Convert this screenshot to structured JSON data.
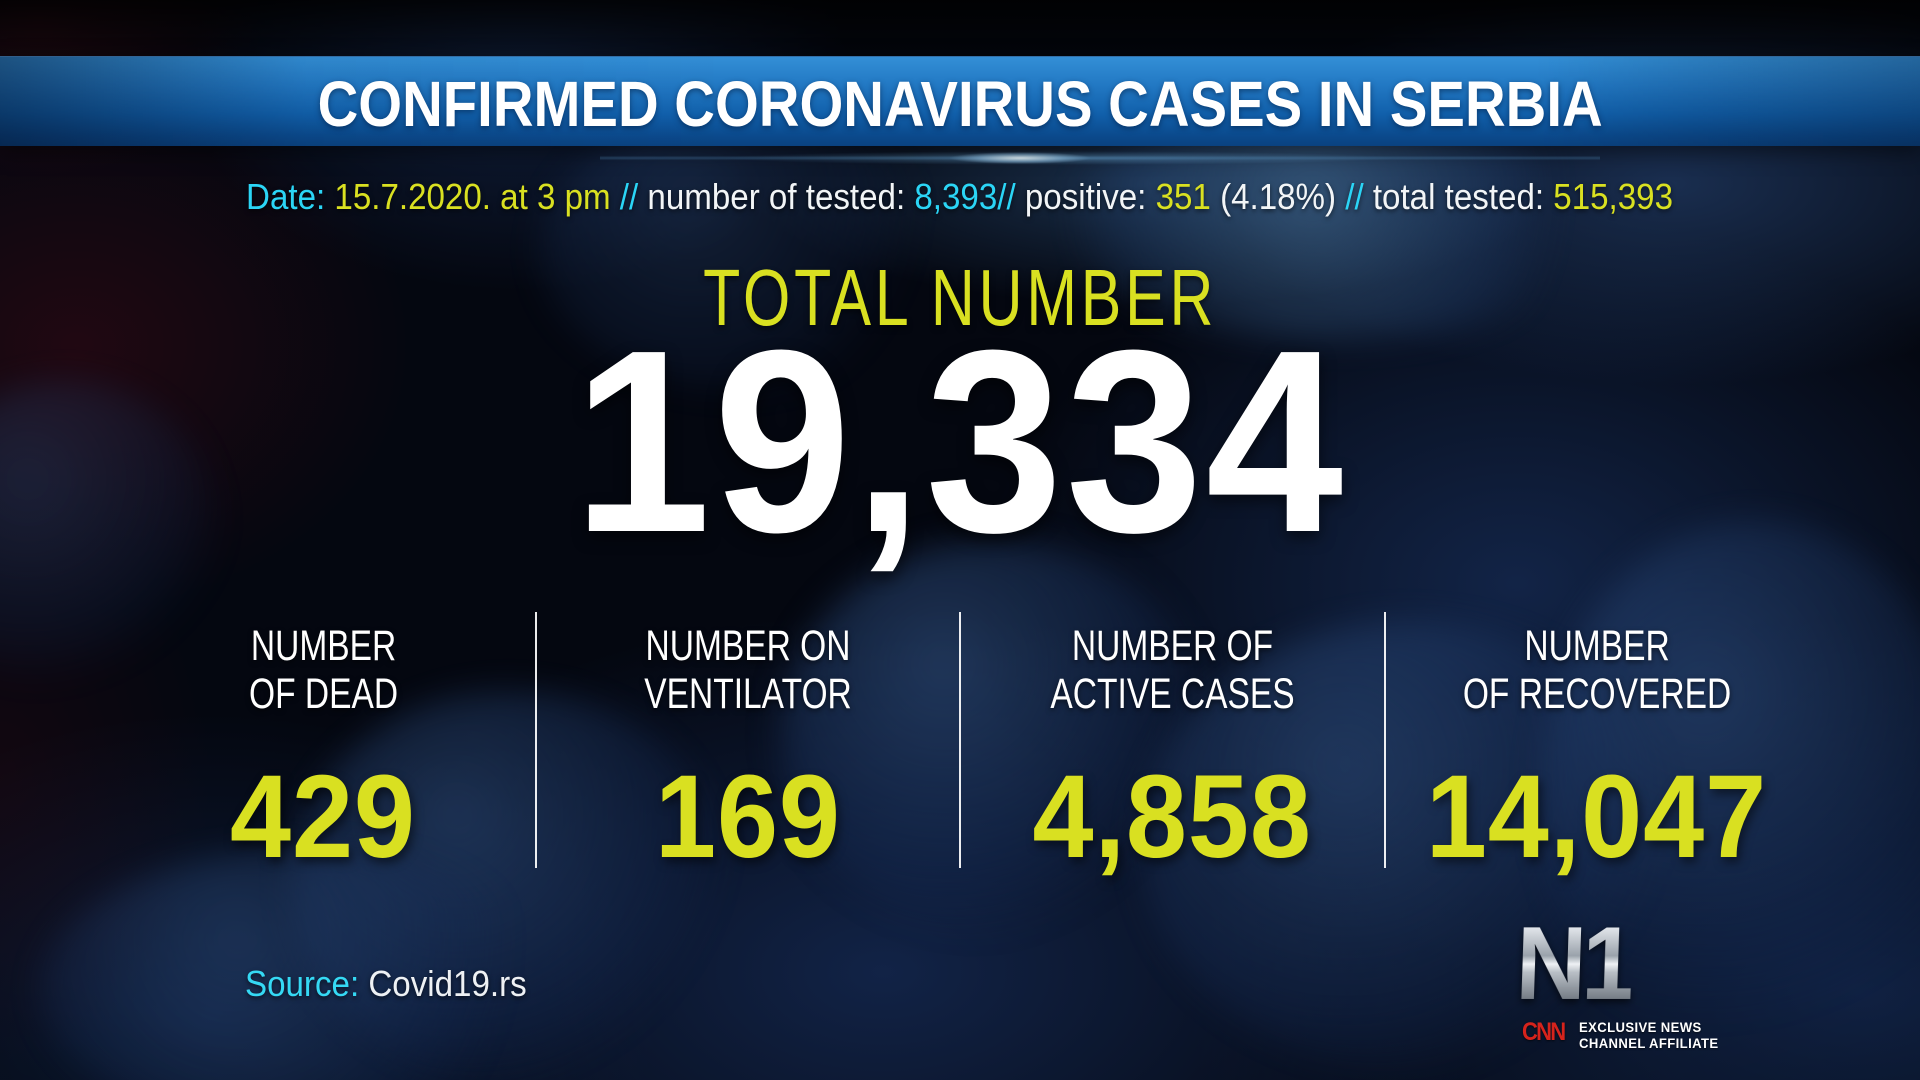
{
  "colors": {
    "banner_blue": "#1467b0",
    "cyan": "#2bd5f6",
    "yellow": "#d9e021",
    "white": "#ffffff",
    "cnn_red": "#d6231c",
    "n1_silver": "#c9cfd6",
    "background_navy": "#081226"
  },
  "banner": {
    "title": "CONFIRMED CORONAVIRUS CASES IN SERBIA"
  },
  "info_line": {
    "segments": [
      {
        "text": "Date: ",
        "style": "cyan"
      },
      {
        "text": "15.7.2020. at 3 pm ",
        "style": "yellow"
      },
      {
        "text": "// ",
        "style": "cyan"
      },
      {
        "text": "number of tested: ",
        "style": "white"
      },
      {
        "text": "8,393",
        "style": "cyan"
      },
      {
        "text": "// ",
        "style": "cyan"
      },
      {
        "text": "positive: ",
        "style": "white"
      },
      {
        "text": "351 ",
        "style": "yellow"
      },
      {
        "text": "(4.18%) ",
        "style": "white"
      },
      {
        "text": "// ",
        "style": "cyan"
      },
      {
        "text": "total tested: ",
        "style": "white"
      },
      {
        "text": "515,393",
        "style": "yellow"
      }
    ]
  },
  "total": {
    "label": "TOTAL NUMBER",
    "value": "19,334"
  },
  "stats": [
    {
      "label_line1": "NUMBER",
      "label_line2": "OF DEAD",
      "value": "429"
    },
    {
      "label_line1": "NUMBER ON",
      "label_line2": "VENTILATOR",
      "value": "169"
    },
    {
      "label_line1": "NUMBER OF",
      "label_line2": "ACTIVE CASES",
      "value": "4,858"
    },
    {
      "label_line1": "NUMBER",
      "label_line2": "OF RECOVERED",
      "value": "14,047"
    }
  ],
  "source": {
    "label": "Source: ",
    "value": "Covid19.rs"
  },
  "branding": {
    "n1_logo": "N1",
    "cnn_logo": "CNN",
    "affiliate_line1": "EXCLUSIVE NEWS",
    "affiliate_line2": "CHANNEL AFFILIATE"
  }
}
